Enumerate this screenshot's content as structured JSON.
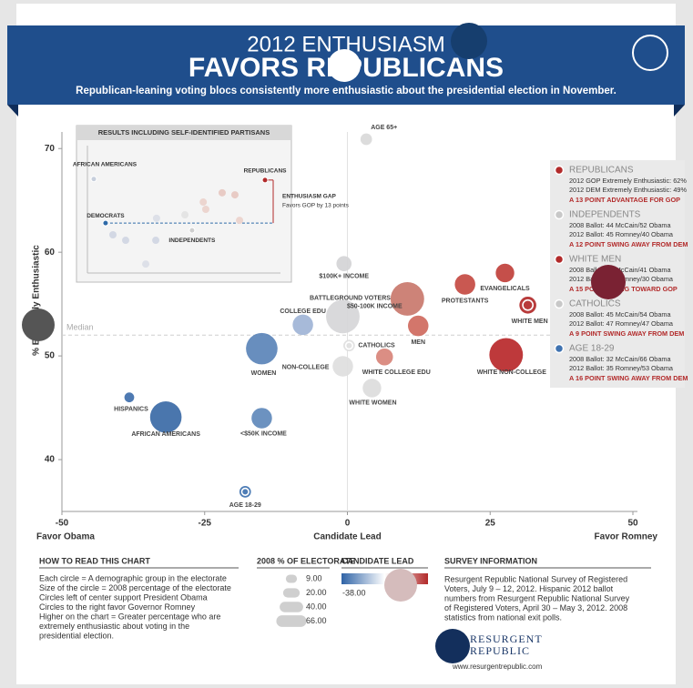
{
  "header": {
    "kicker": "2012 ENTHUSIASM",
    "title": "FAVORS REPUBLICANS",
    "subtitle": "Republican-leaning voting blocs consistently more enthusiastic about the presidential election in November."
  },
  "chart_data": [
    {
      "type": "bubble",
      "xlabel": "Candidate Lead",
      "xlabel_left": "Favor Obama",
      "xlabel_right": "Favor Romney",
      "ylabel": "% Extremely Enthusiastic",
      "xlim": [
        -50,
        50
      ],
      "ylim": [
        35,
        71.6
      ],
      "xticks": [
        -50,
        -25,
        0,
        25,
        50
      ],
      "yticks": [
        40,
        50,
        60,
        70
      ],
      "median": {
        "label": "Median",
        "value": 52
      },
      "points": [
        {
          "label": "AGE 65+",
          "x": 3.3,
          "y": 70.9,
          "size": 7,
          "color": "#d9d9d9"
        },
        {
          "label": "$100K+ INCOME",
          "x": -0.6,
          "y": 58.9,
          "size": 12,
          "color": "#d4d4d6"
        },
        {
          "label": "COLLEGE EDU",
          "x": -7.8,
          "y": 53.0,
          "size": 22,
          "color": "#9fb4d6"
        },
        {
          "label": "BATTLEGROUND VOTERS",
          "x": -0.8,
          "y": 53.8,
          "size": 59,
          "color": "#d6d6d8"
        },
        {
          "label": "$50-100K INCOME",
          "x": 10.5,
          "y": 55.5,
          "size": 59,
          "color": "#c9786c"
        },
        {
          "label": "MEN",
          "x": 12.4,
          "y": 52.9,
          "size": 22,
          "color": "#cf6a5e"
        },
        {
          "label": "PROTESTANTS",
          "x": 20.6,
          "y": 56.9,
          "size": 22,
          "color": "#c44a42"
        },
        {
          "label": "EVANGELICALS",
          "x": 27.6,
          "y": 58.0,
          "size": 18,
          "color": "#c0403b"
        },
        {
          "label": "WHITE MEN",
          "x": 31.6,
          "y": 54.9,
          "size": 15,
          "color": "#b22a2a",
          "highlight": true
        },
        {
          "label": "WHITE NON-COLLEGE",
          "x": 27.8,
          "y": 50.1,
          "size": 59,
          "color": "#b8282a"
        },
        {
          "label": "CATHOLICS",
          "x": 0.3,
          "y": 51.0,
          "size": 7,
          "color": "#e0e0e0",
          "highlight": true
        },
        {
          "label": "WHITE COLLEGE EDU",
          "x": 6.5,
          "y": 49.9,
          "size": 15,
          "color": "#d8847a"
        },
        {
          "label": "NON-COLLEGE",
          "x": -0.8,
          "y": 49.0,
          "size": 22,
          "color": "#dedede"
        },
        {
          "label": "WHITE WOMEN",
          "x": 4.3,
          "y": 46.9,
          "size": 18,
          "color": "#dcdcdc"
        },
        {
          "label": "WOMEN",
          "x": -15,
          "y": 50.7,
          "size": 52,
          "color": "#5b84b8"
        },
        {
          "label": "HISPANICS",
          "x": -38.2,
          "y": 46.0,
          "size": 5,
          "color": "#3f6fab"
        },
        {
          "label": "AFRICAN AMERICANS",
          "x": -31.8,
          "y": 44.1,
          "size": 52,
          "color": "#3b6aa6"
        },
        {
          "label": "<$50K INCOME",
          "x": -15,
          "y": 44.0,
          "size": 22,
          "color": "#5f89bb"
        },
        {
          "label": "AGE 18-29",
          "x": -17.9,
          "y": 36.9,
          "size": 7,
          "color": "#3f72b0",
          "highlight": true
        }
      ],
      "size_legend": {
        "title": "2008 % OF ELECTORATE",
        "values": [
          9,
          20,
          40,
          66
        ],
        "value_labels": [
          "9.00",
          "20.00",
          "40.00",
          "66.00"
        ]
      },
      "color_legend": {
        "title": "CANDIDATE LEAD",
        "min": {
          "value": -38,
          "label": "-38.00"
        }
      }
    },
    {
      "type": "scatter",
      "title": "RESULTS INCLUDING SELF-IDENTIFIED PARTISANS",
      "xlim": [
        -50,
        50
      ],
      "ylim": [
        35,
        72
      ],
      "annotation": "ENTHUSIASM GAP",
      "annotation_sub": "Favors GOP by 13 points",
      "points": [
        {
          "label": "AFRICAN AMERICANS",
          "x": -46.7,
          "y": 62.3,
          "color": "#c7cfdc"
        },
        {
          "label": "DEMOCRATS",
          "x": -40.6,
          "y": 49.5,
          "color": "#2f6aa8"
        },
        {
          "label": "REPUBLICANS",
          "x": 42,
          "y": 62,
          "color": "#b22a2a"
        },
        {
          "label": "INDEPENDENTS",
          "x": 4.2,
          "y": 47.4,
          "color": "#cfcfcf"
        },
        {
          "label": null,
          "x": -36.8,
          "y": 46.1,
          "color": "#d3d8e4"
        },
        {
          "label": null,
          "x": -30.2,
          "y": 44.5,
          "color": "#d3d8e4"
        },
        {
          "label": null,
          "x": -14.2,
          "y": 50.9,
          "color": "#dde0e8"
        },
        {
          "label": null,
          "x": -14.6,
          "y": 44.5,
          "color": "#d3d8e4"
        },
        {
          "label": null,
          "x": 0.5,
          "y": 51.9,
          "color": "#e4e4e4"
        },
        {
          "label": null,
          "x": 10,
          "y": 55.6,
          "color": "#ecd5cf"
        },
        {
          "label": null,
          "x": 11.3,
          "y": 53.5,
          "color": "#ecd5cf"
        },
        {
          "label": null,
          "x": 19.8,
          "y": 58.3,
          "color": "#e8cbc5"
        },
        {
          "label": null,
          "x": 26.4,
          "y": 57.7,
          "color": "#e8cbc5"
        },
        {
          "label": null,
          "x": 28.8,
          "y": 50.3,
          "color": "#ecd5cf"
        },
        {
          "label": null,
          "x": -19.8,
          "y": 37.6,
          "color": "#dde0e8"
        }
      ]
    }
  ],
  "highlights": [
    {
      "title": "REPUBLICANS",
      "lines": [
        "2012 GOP Extremely Enthusiastic: 62%",
        "2012 DEM Extremely Enthusiastic: 49%"
      ],
      "note": "A 13 POINT ADVANTAGE FOR GOP",
      "color": "#b22a2a"
    },
    {
      "title": "INDEPENDENTS",
      "lines": [
        "2008 Ballot: 44 McCain/52 Obama",
        "2012 Ballot: 45 Romney/40 Obama"
      ],
      "note": "A 12 POINT SWING AWAY FROM DEM",
      "color": "#c8c8c8"
    },
    {
      "title": "WHITE MEN",
      "lines": [
        "2008 Ballot: 57 McCain/41 Obama",
        "2012 Ballot: 61 Romney/30 Obama"
      ],
      "note": "A 15 POINT SWING TOWARD GOP",
      "color": "#b22a2a"
    },
    {
      "title": "CATHOLICS",
      "lines": [
        "2008 Ballot: 45 McCain/54 Obama",
        "2012 Ballot: 47 Romney/47 Obama"
      ],
      "note": "A 9 POINT SWING AWAY FROM DEM",
      "color": "#c8c8c8"
    },
    {
      "title": "AGE 18-29",
      "lines": [
        "2008 Ballot: 32 McCain/66 Obama",
        "2012 Ballot: 35 Romney/53 Obama"
      ],
      "note": "A 16 POINT SWING AWAY FROM DEM",
      "color": "#3f72b0"
    }
  ],
  "how_to_read": {
    "title": "HOW TO READ THIS CHART",
    "lines": [
      "Each circle = A demographic group in the electorate",
      "Size of the circle = 2008 percentage of the electorate",
      "Circles left of center support President Obama",
      "Circles to the right favor Governor Romney",
      "Higher on the chart = Greater percentage who are",
      "extremely enthusiastic about voting in the",
      "presidential election."
    ]
  },
  "survey": {
    "title": "SURVEY INFORMATION",
    "lines": [
      "Resurgent Republic National Survey of Registered",
      "Voters, July 9 – 12, 2012. Hispanic 2012 ballot",
      "numbers from Resurgent Republic National Survey",
      "of Registered Voters, April 30 – May 3, 2012. 2008",
      "statistics from national exit polls."
    ]
  },
  "logo": {
    "line1": "RESURGENT",
    "line2": "REPUBLIC",
    "url": "www.resurgentrepublic.com"
  }
}
